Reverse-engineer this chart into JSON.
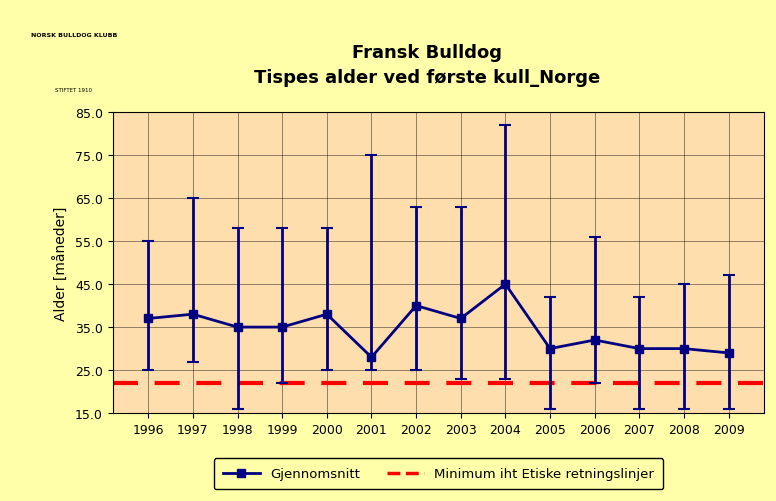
{
  "title_line1": "Fransk Bulldog",
  "title_line2": "Tispes alder ved første kull_Norge",
  "ylabel": "Alder [måneder]",
  "years": [
    1996,
    1997,
    1998,
    1999,
    2000,
    2001,
    2002,
    2003,
    2004,
    2005,
    2006,
    2007,
    2008,
    2009
  ],
  "mean": [
    37,
    38,
    35,
    35,
    38,
    28,
    40,
    37,
    45,
    30,
    32,
    30,
    30,
    29
  ],
  "upper": [
    55,
    65,
    58,
    58,
    58,
    75,
    63,
    63,
    82,
    42,
    56,
    42,
    45,
    47
  ],
  "lower": [
    25,
    27,
    16,
    22,
    25,
    25,
    25,
    23,
    23,
    16,
    22,
    16,
    16,
    16
  ],
  "minimum_line": 22,
  "ylim": [
    15.0,
    85.0
  ],
  "yticks": [
    15.0,
    25.0,
    35.0,
    45.0,
    55.0,
    65.0,
    75.0,
    85.0
  ],
  "background_outer": "#FFFFAA",
  "background_plot": "#FFDEAD",
  "line_color": "#000080",
  "min_line_color": "#FF0000",
  "legend_gjennomsnitt": "Gjennomsnitt",
  "legend_minimum": "Minimum iht Etiske retningslinjer",
  "title_fontsize": 13,
  "axis_label_fontsize": 10,
  "tick_fontsize": 9
}
